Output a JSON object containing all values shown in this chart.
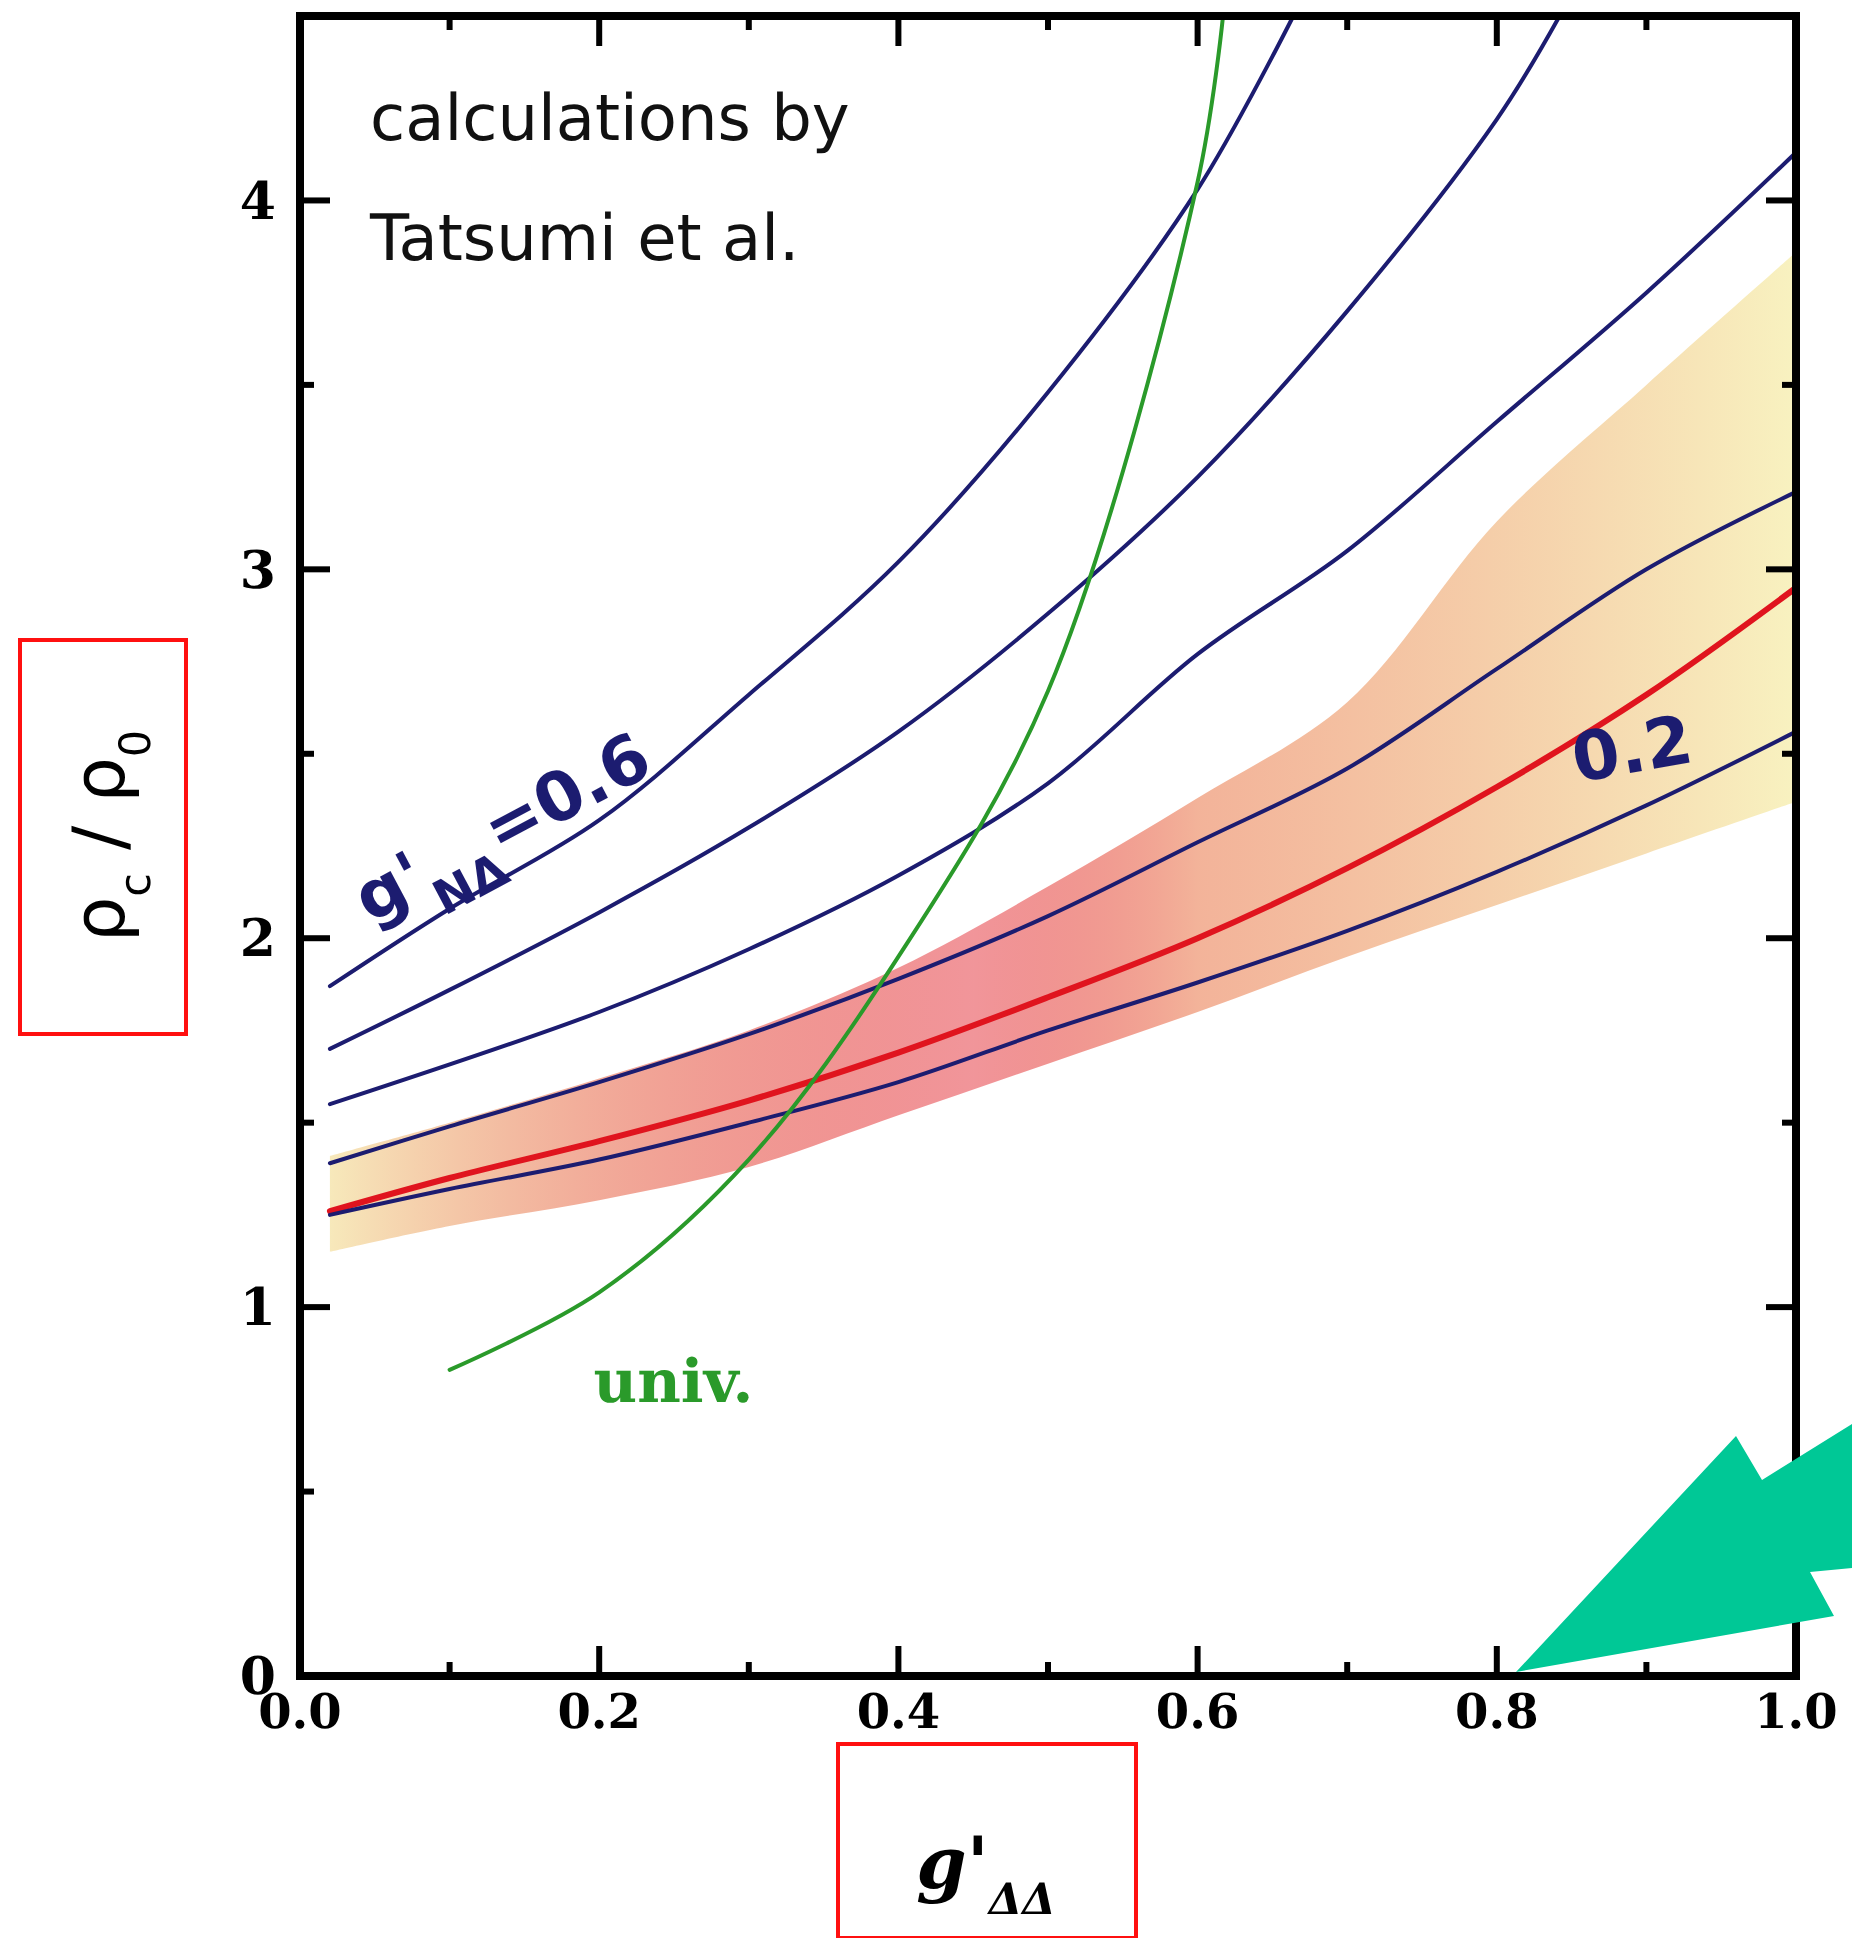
{
  "chart_data": {
    "type": "line",
    "xlabel": "g'$_{ΔΔ}$",
    "ylabel": "ρ$_{c}$ / ρ$_{0}$",
    "xlim": [
      0,
      1
    ],
    "ylim": [
      0,
      4.5
    ],
    "xticks": [
      {
        "value": 0,
        "label": "0.0"
      },
      {
        "value": 0.1,
        "label": null
      },
      {
        "value": 0.2,
        "label": "0.2"
      },
      {
        "value": 0.3,
        "label": null
      },
      {
        "value": 0.4,
        "label": "0.4"
      },
      {
        "value": 0.5,
        "label": null
      },
      {
        "value": 0.6,
        "label": "0.6"
      },
      {
        "value": 0.7,
        "label": null
      },
      {
        "value": 0.8,
        "label": "0.8"
      },
      {
        "value": 0.9,
        "label": null
      },
      {
        "value": 1,
        "label": "1.0"
      }
    ],
    "yticks": [
      0,
      {
        "value": 0.5,
        "label": null
      },
      1,
      {
        "value": 1.5,
        "label": null
      },
      2,
      {
        "value": 2.5,
        "label": null
      },
      3,
      {
        "value": 3.5,
        "label": null
      },
      4
    ],
    "grid": false,
    "marker": "none",
    "line_style": "solid",
    "annotations": [
      "calculations by\nTatsumi et al.",
      "g'$_{NΔ}$=0.6",
      "0.2"
    ],
    "series": [
      {
        "color": "#1c1c70",
        "x": [
          0.02,
          0.1,
          0.2,
          0.3,
          0.4,
          0.5,
          0.6,
          0.664
        ],
        "values": [
          1.87,
          2.08,
          2.32,
          2.66,
          3.02,
          3.48,
          4.03,
          4.5
        ]
      },
      {
        "color": "#1c1c70",
        "x": [
          0.02,
          0.1,
          0.2,
          0.3,
          0.4,
          0.5,
          0.6,
          0.7,
          0.8,
          0.842
        ],
        "values": [
          1.7,
          1.86,
          2.07,
          2.3,
          2.56,
          2.88,
          3.25,
          3.7,
          4.22,
          4.5
        ]
      },
      {
        "color": "#1c1c70",
        "x": [
          0.02,
          0.2,
          0.3,
          0.4,
          0.5,
          0.6,
          0.7,
          0.8,
          0.9,
          1
        ],
        "values": [
          1.55,
          1.8,
          1.97,
          2.17,
          2.42,
          2.77,
          3.05,
          3.4,
          3.75,
          4.13
        ]
      },
      {
        "color": "#1c1c70",
        "x": [
          0.02,
          0.1,
          0.2,
          0.3,
          0.4,
          0.5,
          0.6,
          0.7,
          0.8,
          0.9,
          1
        ],
        "values": [
          1.39,
          1.49,
          1.61,
          1.74,
          1.89,
          2.06,
          2.26,
          2.46,
          2.73,
          3.0,
          3.21
        ]
      },
      {
        "color": "#e0141e",
        "x": [
          0.02,
          0.1,
          0.2,
          0.3,
          0.4,
          0.5,
          0.6,
          0.7,
          0.8,
          0.9,
          1
        ],
        "values": [
          1.26,
          1.35,
          1.45,
          1.56,
          1.69,
          1.84,
          2.0,
          2.19,
          2.41,
          2.66,
          2.95
        ],
        "lower": [
          1.15,
          1.22,
          1.29,
          1.38,
          1.52,
          1.66,
          1.8,
          1.95,
          2.09,
          2.23,
          2.37
        ],
        "upper": [
          1.41,
          1.5,
          1.62,
          1.75,
          1.92,
          2.14,
          2.38,
          2.64,
          3.13,
          3.5,
          3.86
        ]
      },
      {
        "color": "#1c1c70",
        "x": [
          0.02,
          0.1,
          0.2,
          0.3,
          0.4,
          0.5,
          0.6,
          0.7,
          0.8,
          0.9,
          1
        ],
        "values": [
          1.25,
          1.32,
          1.4,
          1.5,
          1.61,
          1.75,
          1.88,
          2.02,
          2.18,
          2.36,
          2.56
        ]
      },
      {
        "name": "univ.",
        "color": "#2a9a2a",
        "x": [
          0.1,
          0.2,
          0.3,
          0.4,
          0.5,
          0.6,
          0.617
        ],
        "values": [
          0.83,
          1.04,
          1.4,
          1.95,
          2.67,
          4.05,
          4.5
        ]
      }
    ]
  }
}
